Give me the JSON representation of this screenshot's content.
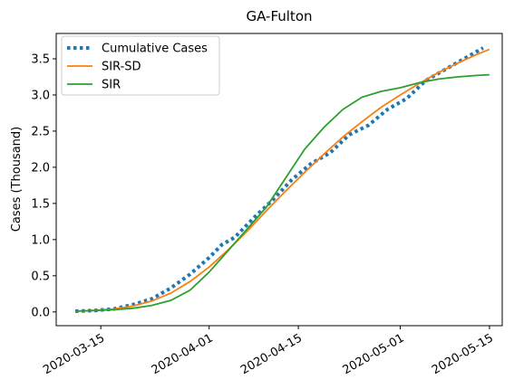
{
  "chart_data": {
    "type": "line",
    "title": "GA-Fulton",
    "xlabel": "",
    "ylabel": "Cases (Thousand)",
    "x_range": [
      "2020-03-08",
      "2020-05-17"
    ],
    "ylim": [
      -0.19,
      3.85
    ],
    "yticks": [
      0.0,
      0.5,
      1.0,
      1.5,
      2.0,
      2.5,
      3.0,
      3.5
    ],
    "ytick_labels": [
      "0.0",
      "0.5",
      "1.0",
      "1.5",
      "2.0",
      "2.5",
      "3.0",
      "3.5"
    ],
    "xticks": [
      "2020-03-15",
      "2020-04-01",
      "2020-04-15",
      "2020-05-01",
      "2020-05-15"
    ],
    "xtick_labels": [
      "2020-03-15",
      "2020-04-01",
      "2020-04-15",
      "2020-05-01",
      "2020-05-15"
    ],
    "grid": false,
    "legend_position": "top-left",
    "series": [
      {
        "name": "Cumulative Cases",
        "color": "#1f77b4",
        "style": "dotted",
        "x": [
          "2020-03-11",
          "2020-03-14",
          "2020-03-17",
          "2020-03-20",
          "2020-03-23",
          "2020-03-26",
          "2020-03-29",
          "2020-04-01",
          "2020-04-03",
          "2020-04-05",
          "2020-04-08",
          "2020-04-11",
          "2020-04-14",
          "2020-04-17",
          "2020-04-20",
          "2020-04-23",
          "2020-04-26",
          "2020-04-29",
          "2020-05-02",
          "2020-05-05",
          "2020-05-08",
          "2020-05-11",
          "2020-05-14"
        ],
        "values": [
          0.01,
          0.02,
          0.04,
          0.1,
          0.18,
          0.33,
          0.52,
          0.75,
          0.93,
          1.03,
          1.3,
          1.55,
          1.83,
          2.05,
          2.2,
          2.45,
          2.58,
          2.8,
          2.95,
          3.2,
          3.35,
          3.5,
          3.65
        ]
      },
      {
        "name": "SIR-SD",
        "color": "#ff7f0e",
        "style": "solid",
        "x": [
          "2020-03-11",
          "2020-03-14",
          "2020-03-17",
          "2020-03-20",
          "2020-03-23",
          "2020-03-26",
          "2020-03-29",
          "2020-04-01",
          "2020-04-04",
          "2020-04-07",
          "2020-04-10",
          "2020-04-13",
          "2020-04-16",
          "2020-04-19",
          "2020-04-22",
          "2020-04-25",
          "2020-04-28",
          "2020-05-01",
          "2020-05-04",
          "2020-05-07",
          "2020-05-10",
          "2020-05-13",
          "2020-05-15"
        ],
        "values": [
          0.01,
          0.02,
          0.04,
          0.08,
          0.15,
          0.26,
          0.42,
          0.62,
          0.86,
          1.12,
          1.4,
          1.67,
          1.93,
          2.18,
          2.42,
          2.63,
          2.83,
          3.0,
          3.16,
          3.31,
          3.44,
          3.56,
          3.63
        ]
      },
      {
        "name": "SIR",
        "color": "#2ca02c",
        "style": "solid",
        "x": [
          "2020-03-11",
          "2020-03-14",
          "2020-03-17",
          "2020-03-20",
          "2020-03-23",
          "2020-03-26",
          "2020-03-29",
          "2020-04-01",
          "2020-04-04",
          "2020-04-07",
          "2020-04-10",
          "2020-04-13",
          "2020-04-16",
          "2020-04-19",
          "2020-04-22",
          "2020-04-25",
          "2020-04-28",
          "2020-05-01",
          "2020-05-04",
          "2020-05-07",
          "2020-05-10",
          "2020-05-13",
          "2020-05-15"
        ],
        "values": [
          0.01,
          0.02,
          0.03,
          0.05,
          0.09,
          0.16,
          0.3,
          0.55,
          0.85,
          1.15,
          1.45,
          1.85,
          2.25,
          2.55,
          2.8,
          2.97,
          3.05,
          3.1,
          3.17,
          3.22,
          3.25,
          3.27,
          3.28
        ]
      }
    ]
  }
}
